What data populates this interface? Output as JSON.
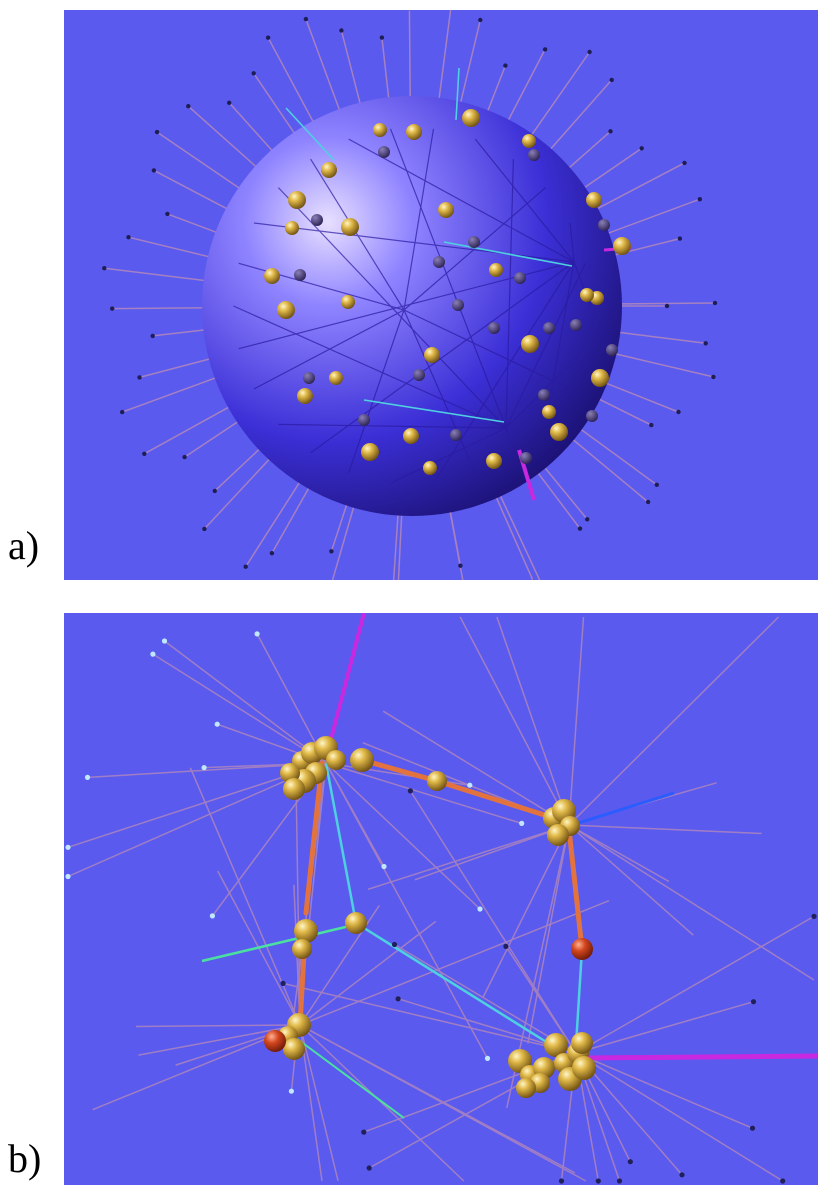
{
  "figure": {
    "panel_a": {
      "label": "a)"
    },
    "panel_b": {
      "label": "b)"
    }
  },
  "colors": {
    "background": "#5a5aee",
    "sphere": "#3b2fd6",
    "node_gold": "#c9a23a",
    "node_red": "#d2461e",
    "edge_orange": "#e2733f",
    "edge_cyan": "#4fd0e0",
    "edge_magenta": "#c828e0",
    "edge_faint": "#b88ab8"
  }
}
